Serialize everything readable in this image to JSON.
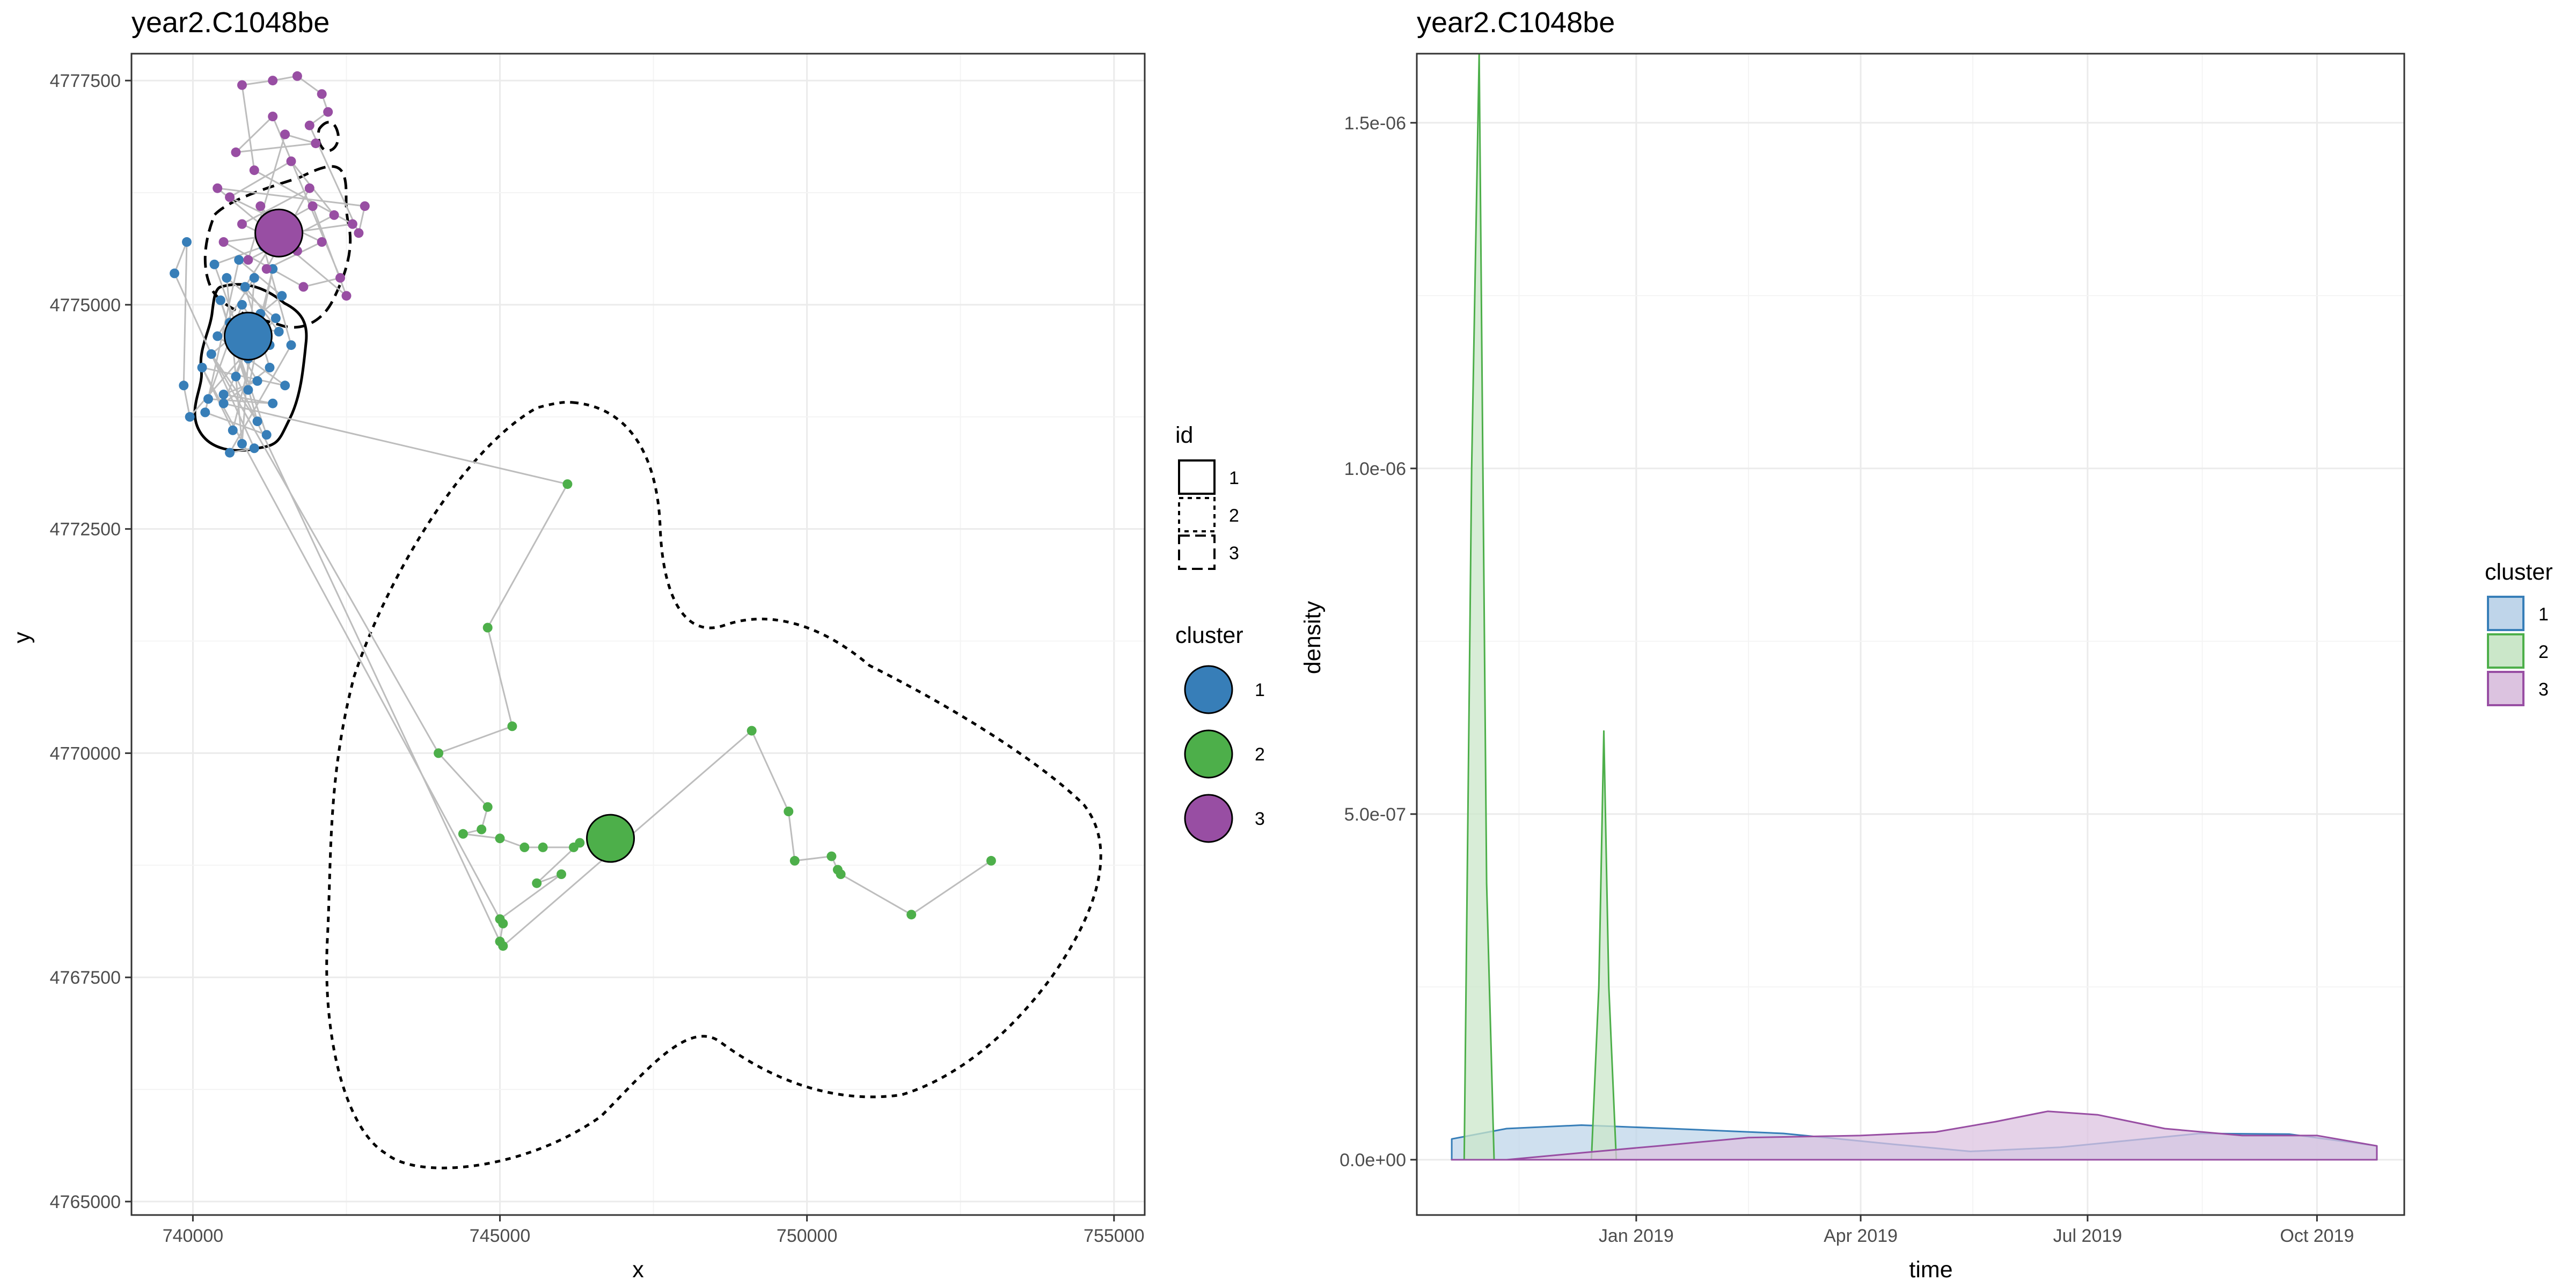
{
  "chart_data": [
    {
      "type": "scatter",
      "title": "year2.C1048be",
      "xlabel": "x",
      "ylabel": "y",
      "xlim": [
        739000,
        755500
      ],
      "ylim": [
        4764850,
        4777800
      ],
      "x_ticks": [
        740000,
        745000,
        750000,
        755000
      ],
      "y_ticks": [
        4765000,
        4767500,
        4770000,
        4772500,
        4775000,
        4777500
      ],
      "x_tick_labels": [
        "740000",
        "745000",
        "750000",
        "755000"
      ],
      "y_tick_labels": [
        "4765000",
        "4767500",
        "4770000",
        "4772500",
        "4775000",
        "4777500"
      ],
      "grid": true,
      "track_color": "#bdbdbd",
      "series": [
        {
          "name": "1",
          "color": "#377eb8",
          "points": [
            [
              740950,
              4774650
            ],
            [
              740700,
              4774200
            ],
            [
              741100,
              4774900
            ],
            [
              740500,
              4773900
            ],
            [
              741250,
              4774300
            ],
            [
              740850,
              4775200
            ],
            [
              741400,
              4774700
            ],
            [
              740600,
              4774800
            ],
            [
              741050,
              4773700
            ],
            [
              740300,
              4774450
            ],
            [
              741450,
              4775100
            ],
            [
              740750,
              4775500
            ],
            [
              740200,
              4773800
            ],
            [
              741200,
              4773550
            ],
            [
              740450,
              4775050
            ],
            [
              740900,
              4774050
            ],
            [
              741300,
              4775400
            ],
            [
              740650,
              4773600
            ],
            [
              740150,
              4774300
            ],
            [
              741500,
              4774100
            ],
            [
              740400,
              4774650
            ],
            [
              741000,
              4775300
            ],
            [
              740800,
              4773450
            ],
            [
              740550,
              4775300
            ],
            [
              741350,
              4774850
            ],
            [
              739950,
              4773750
            ],
            [
              739850,
              4774100
            ],
            [
              739900,
              4775700
            ],
            [
              739700,
              4775350
            ],
            [
              741000,
              4773400
            ],
            [
              740600,
              4773350
            ],
            [
              741600,
              4774550
            ],
            [
              741150,
              4775650
            ],
            [
              740350,
              4775450
            ],
            [
              740900,
              4774400
            ],
            [
              740700,
              4774550
            ],
            [
              741050,
              4774150
            ],
            [
              740500,
              4774000
            ],
            [
              741300,
              4773900
            ],
            [
              740250,
              4773950
            ],
            [
              740800,
              4775000
            ],
            [
              741250,
              4774550
            ]
          ],
          "centroid": [
            740900,
            4774650
          ]
        },
        {
          "name": "2",
          "color": "#4daf4a",
          "points": [
            [
              746100,
              4773000
            ],
            [
              744800,
              4771400
            ],
            [
              745200,
              4770300
            ],
            [
              744000,
              4770000
            ],
            [
              744800,
              4769400
            ],
            [
              744700,
              4769150
            ],
            [
              744400,
              4769100
            ],
            [
              745000,
              4769050
            ],
            [
              745400,
              4768950
            ],
            [
              745700,
              4768950
            ],
            [
              746200,
              4768950
            ],
            [
              746300,
              4769000
            ],
            [
              745600,
              4768550
            ],
            [
              746000,
              4768650
            ],
            [
              745000,
              4768150
            ],
            [
              745050,
              4768100
            ],
            [
              745000,
              4767900
            ],
            [
              745050,
              4767850
            ],
            [
              749100,
              4770250
            ],
            [
              749700,
              4769350
            ],
            [
              749800,
              4768800
            ],
            [
              750400,
              4768850
            ],
            [
              750500,
              4768700
            ],
            [
              750550,
              4768650
            ],
            [
              751700,
              4768200
            ],
            [
              753000,
              4768800
            ]
          ],
          "centroid": [
            746800,
            4769050
          ]
        },
        {
          "name": "3",
          "color": "#984ea3",
          "points": [
            [
              741400,
              4775800
            ],
            [
              741100,
              4776100
            ],
            [
              741700,
              4775600
            ],
            [
              740800,
              4775900
            ],
            [
              741900,
              4776300
            ],
            [
              741200,
              4775400
            ],
            [
              742100,
              4775700
            ],
            [
              740600,
              4776200
            ],
            [
              741600,
              4776600
            ],
            [
              742300,
              4776000
            ],
            [
              740900,
              4775500
            ],
            [
              741500,
              4776900
            ],
            [
              742000,
              4776800
            ],
            [
              740700,
              4776700
            ],
            [
              741300,
              4777100
            ],
            [
              742400,
              4775300
            ],
            [
              741800,
              4775200
            ],
            [
              740500,
              4775700
            ],
            [
              742600,
              4775900
            ],
            [
              741000,
              4776500
            ],
            [
              740800,
              4777450
            ],
            [
              741300,
              4777500
            ],
            [
              741700,
              4777550
            ],
            [
              742100,
              4777350
            ],
            [
              742200,
              4777150
            ],
            [
              741900,
              4777000
            ],
            [
              742700,
              4775800
            ],
            [
              742800,
              4776100
            ],
            [
              740400,
              4776300
            ],
            [
              742500,
              4775100
            ],
            [
              741950,
              4776100
            ],
            [
              741550,
              4775950
            ]
          ],
          "centroid": [
            741400,
            4775800
          ]
        }
      ],
      "legend": {
        "id_title": "id",
        "id_items": [
          "1",
          "2",
          "3"
        ],
        "cluster_title": "cluster",
        "cluster_items": [
          "1",
          "2",
          "3"
        ]
      }
    },
    {
      "type": "area",
      "title": "year2.C1048be",
      "xlabel": "time",
      "ylabel": "density",
      "x_ticks": [
        "2019-01-01",
        "2019-04-01",
        "2019-07-01",
        "2019-10-01"
      ],
      "x_tick_labels": [
        "Jan 2019",
        "Apr 2019",
        "Jul 2019",
        "Oct 2019"
      ],
      "xlim": [
        "2018-10-05",
        "2019-11-05"
      ],
      "ylim": [
        -8e-08,
        1.6e-06
      ],
      "y_ticks": [
        0,
        5e-07,
        1e-06,
        1.5e-06
      ],
      "y_tick_labels": [
        "0.0e+00",
        "5.0e-07",
        "1.0e-06",
        "1.5e-06"
      ],
      "grid": true,
      "legend_title": "cluster",
      "series": [
        {
          "name": "1",
          "color": "#377eb8",
          "fill": "#bfd5ea",
          "points": [
            [
              "2018-10-19",
              3e-08
            ],
            [
              "2018-11-10",
              4.5e-08
            ],
            [
              "2018-12-10",
              5e-08
            ],
            [
              "2019-01-15",
              4.5e-08
            ],
            [
              "2019-03-01",
              3.8e-08
            ],
            [
              "2019-04-15",
              2.2e-08
            ],
            [
              "2019-05-15",
              1.2e-08
            ],
            [
              "2019-06-20",
              1.8e-08
            ],
            [
              "2019-08-15",
              3.8e-08
            ],
            [
              "2019-09-20",
              3.7e-08
            ],
            [
              "2019-10-25",
              2e-08
            ]
          ]
        },
        {
          "name": "2",
          "color": "#4daf4a",
          "fill": "#cbe7c9",
          "points": [
            [
              "2018-10-19",
              0
            ],
            [
              "2018-10-24",
              0
            ],
            [
              "2018-10-27",
              1e-06
            ],
            [
              "2018-10-30",
              1.6e-06
            ],
            [
              "2018-11-02",
              4e-07
            ],
            [
              "2018-11-05",
              0
            ],
            [
              "2018-12-14",
              0
            ],
            [
              "2018-12-17",
              2.5e-07
            ],
            [
              "2018-12-19",
              6.2e-07
            ],
            [
              "2018-12-21",
              2.5e-07
            ],
            [
              "2018-12-24",
              0
            ],
            [
              "2019-10-25",
              0
            ]
          ]
        },
        {
          "name": "3",
          "color": "#984ea3",
          "fill": "#dcc3e0",
          "points": [
            [
              "2018-10-19",
              0
            ],
            [
              "2018-11-10",
              0
            ],
            [
              "2018-12-10",
              1e-08
            ],
            [
              "2019-01-10",
              2e-08
            ],
            [
              "2019-02-15",
              3.2e-08
            ],
            [
              "2019-04-01",
              3.5e-08
            ],
            [
              "2019-05-01",
              4e-08
            ],
            [
              "2019-05-25",
              5.5e-08
            ],
            [
              "2019-06-15",
              7e-08
            ],
            [
              "2019-07-05",
              6.5e-08
            ],
            [
              "2019-08-01",
              4.5e-08
            ],
            [
              "2019-09-01",
              3.5e-08
            ],
            [
              "2019-10-01",
              3.5e-08
            ],
            [
              "2019-10-25",
              2e-08
            ]
          ]
        }
      ]
    }
  ]
}
